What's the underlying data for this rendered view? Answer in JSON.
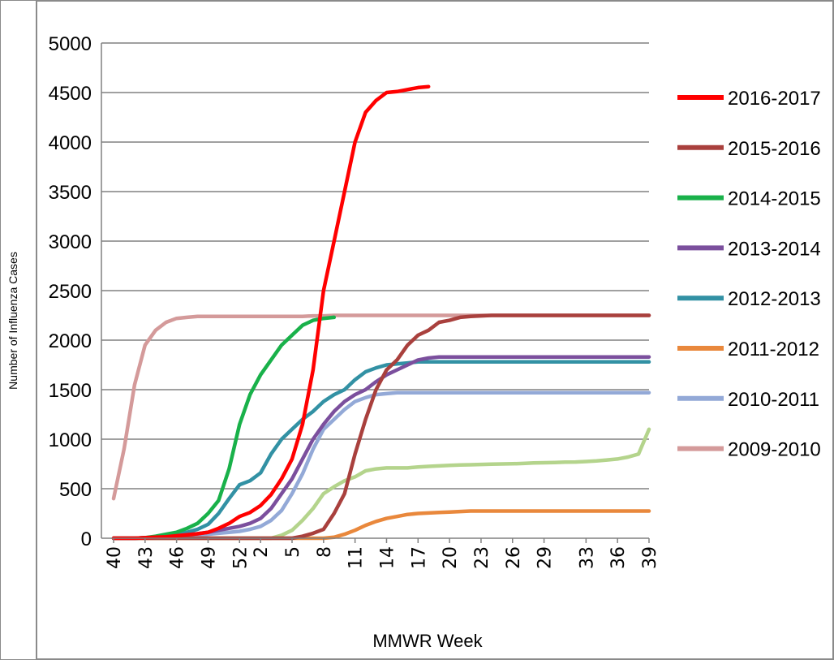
{
  "chart_data": {
    "type": "line",
    "title": "",
    "xlabel": "MMWR Week",
    "ylabel": "Number of Influenza Cases",
    "ylim": [
      0,
      5000
    ],
    "yticks": [
      "0",
      "500",
      "1000",
      "1500",
      "2000",
      "2500",
      "3000",
      "3500",
      "4000",
      "4500",
      "5000"
    ],
    "x_tick_labels": [
      "40",
      "43",
      "46",
      "49",
      "52",
      "2",
      "5",
      "8",
      "11",
      "14",
      "17",
      "20",
      "23",
      "26",
      "29",
      "33",
      "36",
      "39"
    ],
    "x_week_sequence": [
      "40",
      "41",
      "42",
      "43",
      "44",
      "45",
      "46",
      "47",
      "48",
      "49",
      "50",
      "51",
      "52",
      "1",
      "2",
      "3",
      "4",
      "5",
      "6",
      "7",
      "8",
      "9",
      "10",
      "11",
      "12",
      "13",
      "14",
      "15",
      "16",
      "17",
      "18",
      "19",
      "20",
      "21",
      "22",
      "23",
      "24",
      "25",
      "26",
      "27",
      "28",
      "29",
      "30",
      "31",
      "32",
      "33",
      "34",
      "35",
      "36",
      "37",
      "38",
      "39"
    ],
    "grid": true,
    "legend_position": "right",
    "series": [
      {
        "name": "2016-2017",
        "color": "#FF0000",
        "values": [
          0,
          0,
          0,
          5,
          10,
          15,
          25,
          35,
          45,
          60,
          100,
          150,
          220,
          260,
          330,
          440,
          600,
          800,
          1150,
          1700,
          2500,
          3000,
          3500,
          4000,
          4300,
          4420,
          4500,
          4510,
          4530,
          4550,
          4560
        ]
      },
      {
        "name": "2015-2016",
        "color": "#A9403D",
        "values": [
          0,
          0,
          0,
          0,
          0,
          0,
          0,
          0,
          0,
          0,
          0,
          0,
          0,
          0,
          0,
          0,
          0,
          0,
          20,
          50,
          90,
          250,
          450,
          850,
          1200,
          1500,
          1700,
          1800,
          1950,
          2050,
          2100,
          2180,
          2200,
          2230,
          2240,
          2245,
          2250,
          2250,
          2250,
          2250,
          2250,
          2250,
          2250,
          2250,
          2250,
          2250,
          2250,
          2250,
          2250,
          2250,
          2250,
          2250
        ]
      },
      {
        "name": "2014-2015",
        "color": "#19B14A",
        "values": [
          0,
          0,
          0,
          5,
          20,
          40,
          60,
          100,
          150,
          250,
          380,
          700,
          1150,
          1450,
          1650,
          1800,
          1950,
          2050,
          2150,
          2200,
          2220,
          2230
        ]
      },
      {
        "name": "2013-2014",
        "color": "#7B4F9D",
        "values": [
          0,
          0,
          0,
          5,
          10,
          15,
          25,
          35,
          45,
          60,
          80,
          100,
          120,
          150,
          200,
          300,
          450,
          600,
          800,
          1000,
          1150,
          1280,
          1380,
          1450,
          1500,
          1580,
          1650,
          1700,
          1750,
          1800,
          1820,
          1830,
          1830,
          1830,
          1830,
          1830,
          1830,
          1830,
          1830,
          1830,
          1830,
          1830,
          1830,
          1830,
          1830,
          1830,
          1830,
          1830,
          1830,
          1830,
          1830,
          1830
        ]
      },
      {
        "name": "2012-2013",
        "color": "#3291A4",
        "values": [
          0,
          0,
          0,
          5,
          10,
          20,
          40,
          60,
          90,
          140,
          250,
          400,
          540,
          580,
          660,
          850,
          1000,
          1100,
          1200,
          1280,
          1380,
          1450,
          1500,
          1600,
          1680,
          1720,
          1750,
          1760,
          1770,
          1780,
          1780,
          1780,
          1780,
          1780,
          1780,
          1780,
          1780,
          1780,
          1780,
          1780,
          1780,
          1780,
          1780,
          1780,
          1780,
          1780,
          1780,
          1780,
          1780,
          1780,
          1780,
          1780
        ]
      },
      {
        "name": "2011-2012",
        "color": "#E9883C",
        "values": [
          0,
          0,
          0,
          0,
          0,
          0,
          0,
          0,
          0,
          0,
          0,
          0,
          0,
          0,
          0,
          0,
          0,
          0,
          0,
          0,
          0,
          10,
          40,
          80,
          130,
          170,
          200,
          220,
          240,
          250,
          255,
          260,
          265,
          270,
          275,
          275,
          275,
          275,
          275,
          275,
          275,
          275,
          275,
          275,
          275,
          275,
          275,
          275,
          275,
          275,
          275,
          275
        ]
      },
      {
        "name": "2010-2011",
        "color": "#93A9D7",
        "values": [
          0,
          0,
          0,
          5,
          10,
          15,
          20,
          25,
          30,
          40,
          50,
          60,
          70,
          90,
          120,
          180,
          280,
          450,
          650,
          900,
          1100,
          1200,
          1300,
          1380,
          1420,
          1450,
          1460,
          1470,
          1470,
          1470,
          1470,
          1470,
          1470,
          1470,
          1470,
          1470,
          1470,
          1470,
          1470,
          1470,
          1470,
          1470,
          1470,
          1470,
          1470,
          1470,
          1470,
          1470,
          1470,
          1470,
          1470,
          1470
        ]
      },
      {
        "name": "",
        "color": "#B4D48C",
        "values": [
          0,
          0,
          0,
          0,
          0,
          0,
          0,
          0,
          0,
          0,
          0,
          0,
          0,
          0,
          0,
          0,
          30,
          80,
          180,
          300,
          450,
          520,
          580,
          620,
          680,
          700,
          710,
          710,
          710,
          720,
          725,
          730,
          735,
          740,
          742,
          745,
          748,
          750,
          752,
          755,
          760,
          762,
          765,
          768,
          770,
          775,
          780,
          790,
          800,
          820,
          850,
          1100
        ]
      },
      {
        "name": "2009-2010",
        "color": "#D49A9A",
        "values": [
          400,
          900,
          1550,
          1950,
          2100,
          2180,
          2220,
          2230,
          2240,
          2240,
          2240,
          2240,
          2240,
          2240,
          2240,
          2240,
          2240,
          2240,
          2240,
          2245,
          2245,
          2250,
          2250,
          2250,
          2250,
          2250,
          2250,
          2250,
          2250,
          2250,
          2250,
          2250,
          2250,
          2250,
          2250,
          2250,
          2250,
          2250,
          2250,
          2250,
          2250,
          2250,
          2250,
          2250,
          2250,
          2250,
          2250,
          2250,
          2250,
          2250,
          2250,
          2250
        ]
      }
    ]
  }
}
